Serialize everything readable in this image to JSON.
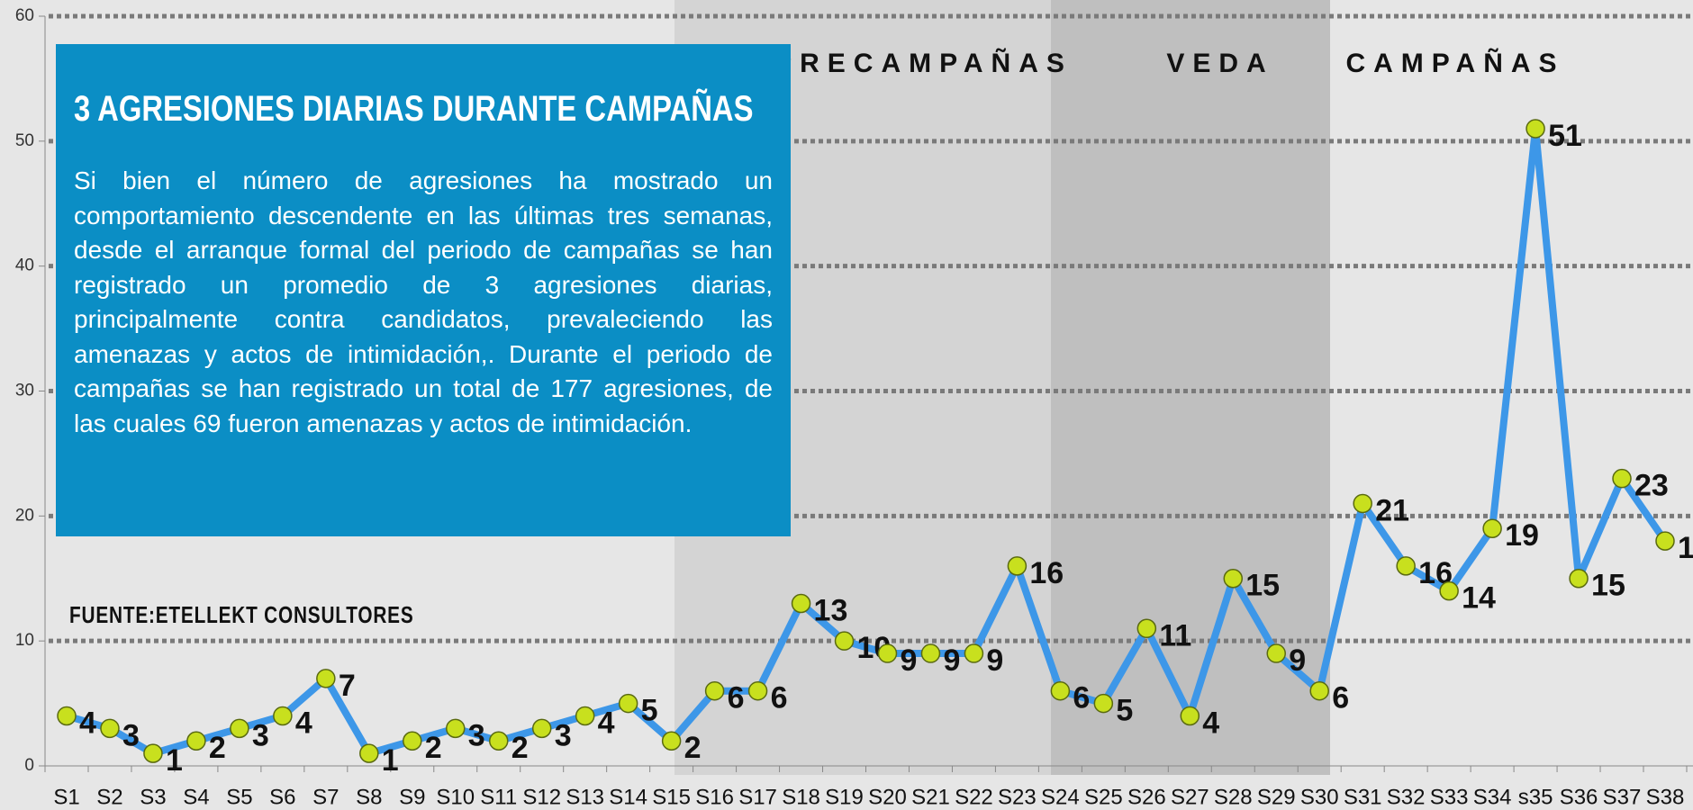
{
  "chart_data": {
    "type": "line",
    "title": "3 AGRESIONES DIARIAS DURANTE CAMPAÑAS",
    "text": "Si bien el número de agresiones ha mostrado un comportamiento descendente en las últimas tres semanas, desde el arranque formal del periodo de campañas se han registrado un promedio de 3 agresiones diarias, principalmente contra candidatos, prevaleciendo las amenazas y actos de intimidación,. Durante el periodo de campañas se han registrado un total de 177 agresiones, de las cuales 69 fueron amenazas y actos de intimidación.",
    "source": "FUENTE:ETELLEKT CONSULTORES",
    "regions": [
      "PRECAMPAÑAS",
      "VEDA",
      "CAMPAÑAS"
    ],
    "categories": [
      "S1",
      "S2",
      "S3",
      "S4",
      "S5",
      "S6",
      "S7",
      "S8",
      "S9",
      "S10",
      "S11",
      "S12",
      "S13",
      "S14",
      "S15",
      "S16",
      "S17",
      "S18",
      "S19",
      "S20",
      "S21",
      "S22",
      "S23",
      "S24",
      "S25",
      "S26",
      "S27",
      "S28",
      "S29",
      "S30",
      "S31",
      "S32",
      "S33",
      "S34",
      "s35",
      "S36",
      "S37",
      "S38"
    ],
    "values": [
      4,
      3,
      1,
      2,
      3,
      4,
      7,
      1,
      2,
      3,
      2,
      3,
      4,
      5,
      2,
      6,
      6,
      13,
      10,
      9,
      9,
      9,
      16,
      6,
      5,
      11,
      4,
      15,
      9,
      6,
      21,
      16,
      14,
      19,
      51,
      15,
      23,
      18
    ],
    "color": "#3d97e8",
    "marker_color": "#c8e01e",
    "ylim": [
      0,
      60
    ],
    "yticks": [
      0,
      10,
      20,
      30,
      40,
      50,
      60
    ],
    "grid": true
  }
}
